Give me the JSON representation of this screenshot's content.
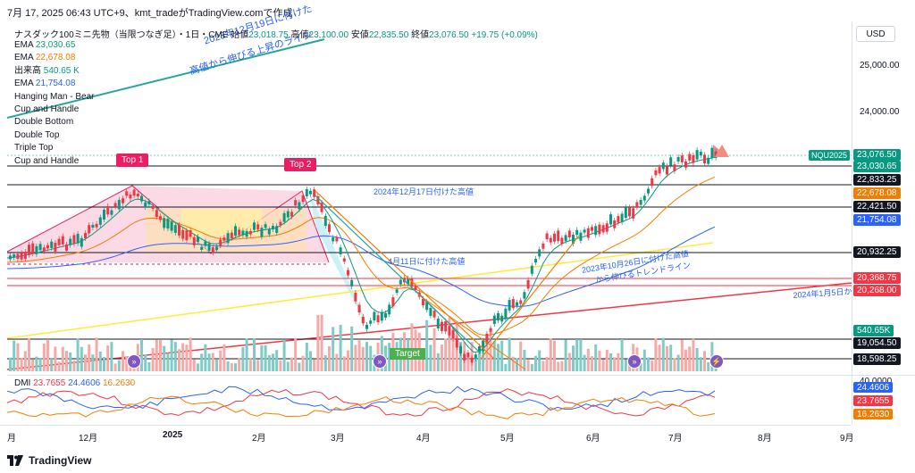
{
  "header": {
    "timestamp_line": "7月 17, 2025 06:43 UTC+9、kmt_tradeがTradingView.comで作成"
  },
  "symbol": {
    "title": "ナスダック100ミニ先物（当限つなぎ足）・1日・CME",
    "open_label": "始値",
    "open_value": "23,018.75",
    "high_label": "高値",
    "high_value": "23,100.00",
    "low_label": "安値",
    "low_value": "22,835.50",
    "close_label": "終値",
    "close_value": "23,076.50",
    "change": "+19.75 (+0.09%)",
    "ticker": "NQU2025",
    "currency": "USD"
  },
  "legend": [
    {
      "name": "EMA",
      "value": "23,030.65",
      "color": "#089981"
    },
    {
      "name": "EMA",
      "value": "22,678.08",
      "color": "#f57c00"
    },
    {
      "name": "出来高",
      "value": "540.65 K",
      "color": "#089981"
    },
    {
      "name": "EMA",
      "value": "21,754.08",
      "color": "#2962ff"
    },
    {
      "name": "Hanging Man - Bear",
      "value": "",
      "color": "#131722"
    },
    {
      "name": "Cup and Handle",
      "value": "",
      "color": "#131722"
    },
    {
      "name": "Double Bottom",
      "value": "",
      "color": "#131722"
    },
    {
      "name": "Double Top",
      "value": "",
      "color": "#131722"
    },
    {
      "name": "Triple Top",
      "value": "",
      "color": "#131722"
    },
    {
      "name": "Cup and Handle",
      "value": "",
      "color": "#131722"
    }
  ],
  "price_axis": {
    "ticks": [
      "25,000.00",
      "24,000.00"
    ],
    "tags": [
      {
        "text": "23,076.50",
        "color": "#089981"
      },
      {
        "text": "23,030.65",
        "color": "#089981"
      },
      {
        "text": "22,833.25",
        "color": "#131722"
      },
      {
        "text": "22,678.08",
        "color": "#f57c00"
      },
      {
        "text": "22,421.50",
        "color": "#131722"
      },
      {
        "text": "21,754.08",
        "color": "#2962ff"
      },
      {
        "text": "20,932.25",
        "color": "#131722"
      },
      {
        "text": "20,368.75",
        "color": "#f23645"
      },
      {
        "text": "20,268.00",
        "color": "#f23645"
      },
      {
        "text": "540.65K",
        "color": "#089981"
      },
      {
        "text": "19,054.50",
        "color": "#131722"
      },
      {
        "text": "18,598.25",
        "color": "#131722"
      }
    ]
  },
  "annotations": {
    "top1": "Top 1",
    "top2": "Top 2",
    "target": "Target",
    "ath_line": "2024年12月17日付けた高値",
    "apr_high": "4月11日に付けた高値",
    "trend_line_1": "2023年12月19日に付けた",
    "trend_line_2": "高値から伸びる上昇のライン",
    "oct_line_1": "2023年10月26日に付けた高値",
    "oct_line_2": "から伸びるトレンドライン",
    "jan_line": "2024年1月5日か"
  },
  "dmi": {
    "label": "DMI",
    "adx": "23.7655",
    "plus_di": "24.4606",
    "minus_di": "16.2630",
    "axis_top": "40.0000",
    "colors": {
      "adx": "#f23645",
      "plus_di": "#2962ff",
      "minus_di": "#f57c00"
    }
  },
  "time_axis": {
    "labels": [
      {
        "text": "月",
        "bold": false
      },
      {
        "text": "12月",
        "bold": false
      },
      {
        "text": "2025",
        "bold": true
      },
      {
        "text": "2月",
        "bold": false
      },
      {
        "text": "3月",
        "bold": false
      },
      {
        "text": "4月",
        "bold": false
      },
      {
        "text": "5月",
        "bold": false
      },
      {
        "text": "6月",
        "bold": false
      },
      {
        "text": "7月",
        "bold": false
      },
      {
        "text": "8月",
        "bold": false
      },
      {
        "text": "9月",
        "bold": false
      }
    ]
  },
  "footer": {
    "brand": "TradingView"
  }
}
